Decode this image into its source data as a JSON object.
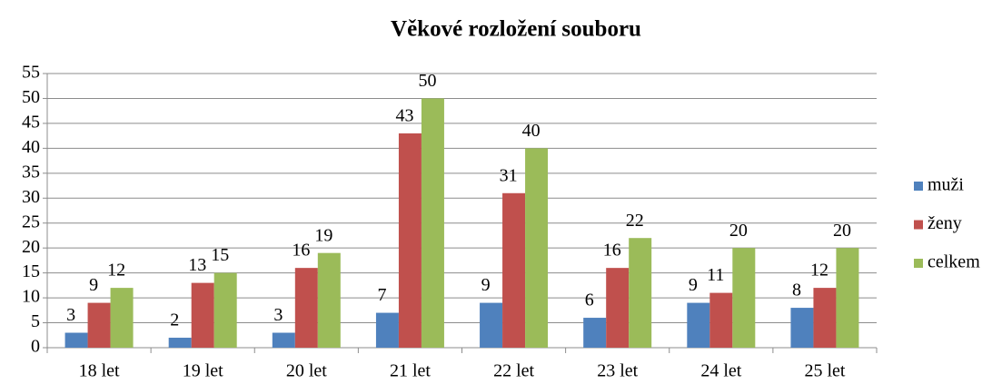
{
  "chart_data": {
    "type": "bar",
    "title": "Věkové rozložení souboru",
    "categories": [
      "18 let",
      "19 let",
      "20 let",
      "21 let",
      "22 let",
      "23 let",
      "24 let",
      "25 let"
    ],
    "series": [
      {
        "name": "muži",
        "color": "#4f81bd",
        "values": [
          3,
          2,
          3,
          7,
          9,
          6,
          9,
          8
        ]
      },
      {
        "name": "ženy",
        "color": "#c0504d",
        "values": [
          9,
          13,
          16,
          43,
          31,
          16,
          11,
          12
        ]
      },
      {
        "name": "celkem",
        "color": "#9bbb59",
        "values": [
          12,
          15,
          19,
          50,
          40,
          22,
          20,
          20
        ]
      }
    ],
    "ylim": [
      0,
      55
    ],
    "yticks": [
      0,
      5,
      10,
      15,
      20,
      25,
      30,
      35,
      40,
      45,
      50,
      55
    ],
    "grid": true,
    "legend": "right"
  }
}
